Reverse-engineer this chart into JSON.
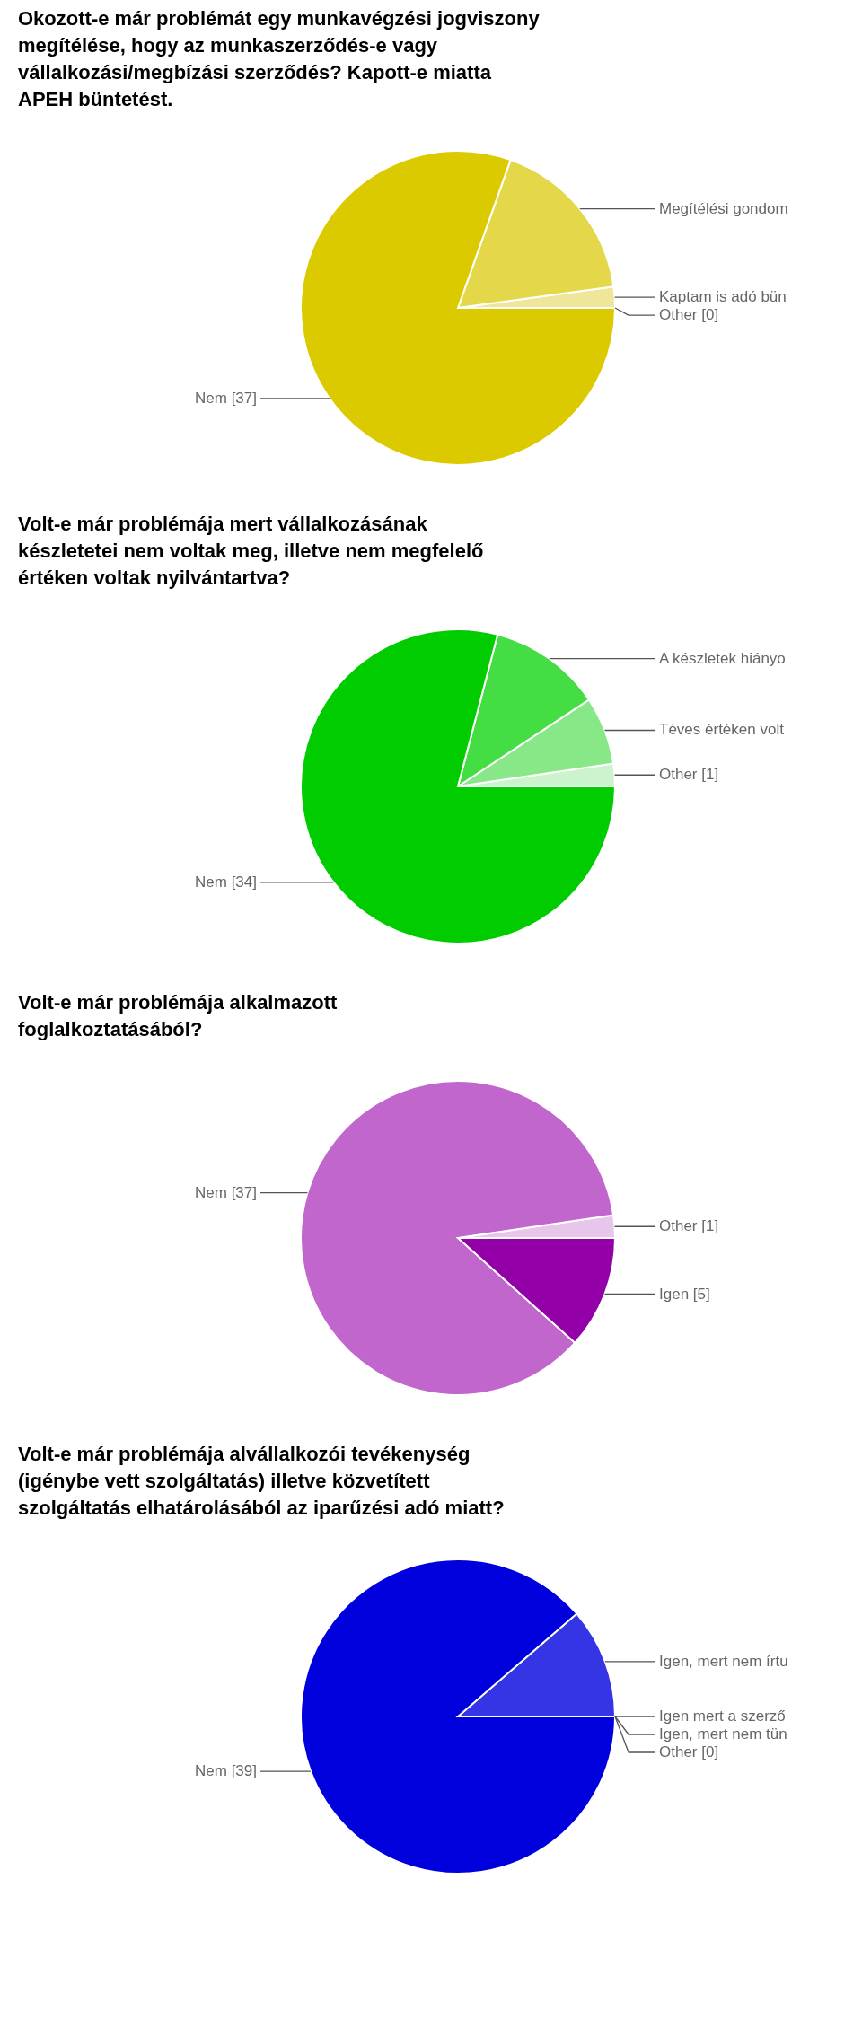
{
  "chart_data": [
    {
      "type": "pie",
      "title": "Okozott-e már problémát egy munkavégzési jogviszony megítélése, hogy az munkaszerződés-e vagy vállalkozási/megbízási szerződés? Kapott-e miatta APEH büntetést.",
      "categories": [
        "Other [0]",
        "Kaptam is adó bün",
        "Megítélési gondom",
        "Nem [37]"
      ],
      "values": [
        0,
        1,
        8,
        37
      ],
      "colors": [
        "#f6f1c8",
        "#efe69a",
        "#e4d84a",
        "#dcca00"
      ]
    },
    {
      "type": "pie",
      "title": "Volt-e már problémája mert vállalkozásának készletetei nem voltak meg, illetve nem megfelelő értéken voltak nyilvántartva?",
      "categories": [
        "Other [1]",
        "Téves értéken volt",
        "A készletek hiányo",
        "Nem [34]"
      ],
      "values": [
        1,
        3,
        5,
        34
      ],
      "colors": [
        "#ccf4cc",
        "#88e888",
        "#44dd44",
        "#00cc00"
      ]
    },
    {
      "type": "pie",
      "title": "Volt-e már problémája alkalmazott foglalkoztatásából?",
      "categories": [
        "Other [1]",
        "Nem [37]",
        "Igen [5]"
      ],
      "values": [
        1,
        37,
        5
      ],
      "colors": [
        "#e8c6ec",
        "#c066cc",
        "#9300a8"
      ]
    },
    {
      "type": "pie",
      "title": "Volt-e már problémája alvállalkozói tevékenység (igénybe vett szolgáltatás) illetve közvetített szolgáltatás elhatárolásából az iparűzési adó miatt?",
      "categories": [
        "Other [0]",
        "Igen, mert nem tün",
        "Igen mert a szerző",
        "Igen, mert nem írtu",
        "Nem [39]"
      ],
      "values": [
        0,
        0,
        0,
        5,
        39
      ],
      "colors": [
        "#d0d0f9",
        "#a0a0f3",
        "#6b6bec",
        "#3535e5",
        "#0000dd"
      ]
    }
  ]
}
